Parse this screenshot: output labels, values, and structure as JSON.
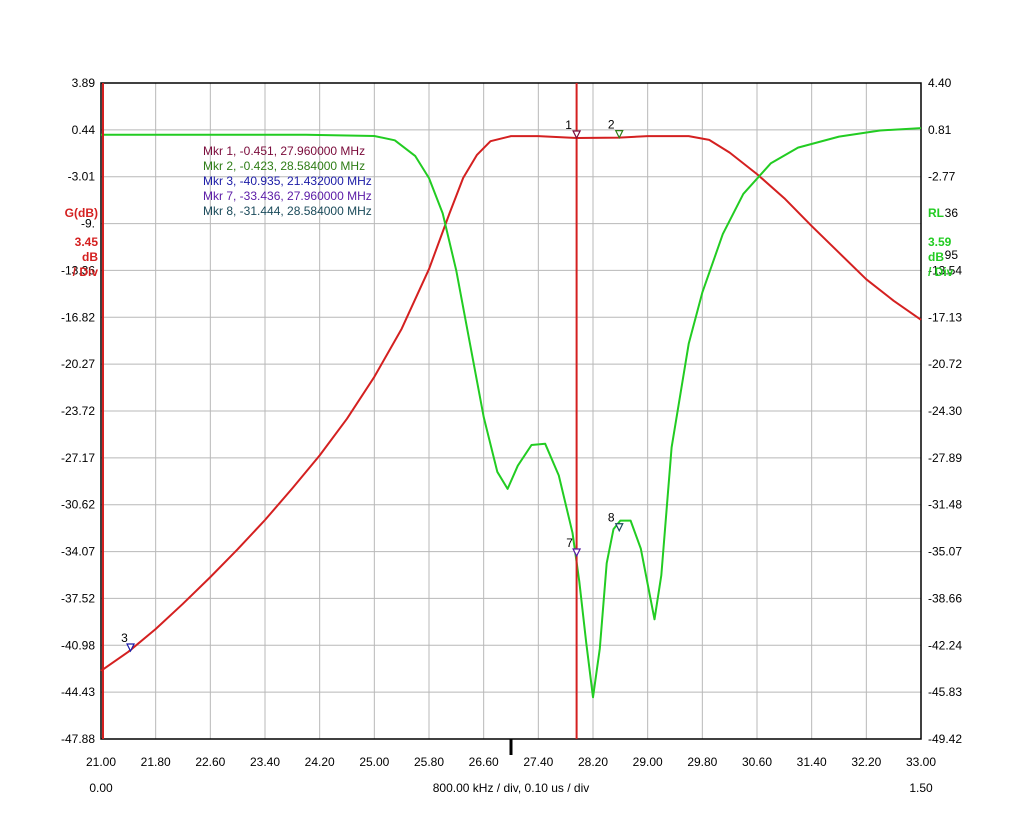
{
  "chart_data": {
    "type": "line",
    "x_ticks": [
      "21.00",
      "21.80",
      "22.60",
      "23.40",
      "24.20",
      "25.00",
      "25.80",
      "26.60",
      "27.40",
      "28.20",
      "29.00",
      "29.80",
      "30.60",
      "31.40",
      "32.20",
      "33.00"
    ],
    "x_range_mhz": [
      21.0,
      33.0
    ],
    "left_axis": {
      "label": "G(dB)",
      "scale_value": "3.45",
      "scale_unit": "dB",
      "scale_per": "/ Div",
      "color": "#d42020",
      "ticks": [
        "3.89",
        "0.44",
        "-3.01",
        "-9.",
        "-13.36",
        "-16.82",
        "-20.27",
        "-23.72",
        "-27.17",
        "-30.62",
        "-34.07",
        "-37.52",
        "-40.98",
        "-44.43",
        "-47.88"
      ],
      "range": [
        -47.88,
        3.89
      ]
    },
    "right_axis": {
      "label": "RL",
      "label_suffix": "36",
      "scale_value": "3.59",
      "scale_unit": "dB",
      "scale_suffix": "95",
      "scale_per": "/ Div",
      "color": "#22cc22",
      "ticks": [
        "4.40",
        "0.81",
        "-2.77",
        "",
        "-13.54",
        "-17.13",
        "-20.72",
        "-24.30",
        "-27.89",
        "-31.48",
        "-35.07",
        "-38.66",
        "-42.24",
        "-45.83",
        "-49.42"
      ],
      "range": [
        -49.42,
        4.4
      ]
    },
    "bottom_left": "0.00",
    "bottom_center": "800.00 kHz / div, 0.10 us / div",
    "bottom_right": "1.50",
    "marker_table": [
      {
        "text": "Mkr 1, -0.451, 27.960000 MHz",
        "color": "#7a0a3a"
      },
      {
        "text": "Mkr 2, -0.423, 28.584000 MHz",
        "color": "#2e7d16"
      },
      {
        "text": "Mkr 3, -40.935, 21.432000 MHz",
        "color": "#1a1aa6"
      },
      {
        "text": "Mkr 7, -33.436, 27.960000 MHz",
        "color": "#5a1aa6"
      },
      {
        "text": "Mkr 8, -31.444, 28.584000 MHz",
        "color": "#1a4a5a"
      }
    ],
    "series": [
      {
        "name": "G",
        "color": "#d42020",
        "axis": "left",
        "points": [
          [
            21.0,
            -42.5
          ],
          [
            21.4,
            -41.0
          ],
          [
            21.8,
            -39.2
          ],
          [
            22.2,
            -37.2
          ],
          [
            22.6,
            -35.1
          ],
          [
            23.0,
            -32.9
          ],
          [
            23.4,
            -30.6
          ],
          [
            23.8,
            -28.1
          ],
          [
            24.2,
            -25.5
          ],
          [
            24.6,
            -22.6
          ],
          [
            25.0,
            -19.3
          ],
          [
            25.4,
            -15.5
          ],
          [
            25.8,
            -10.8
          ],
          [
            26.1,
            -6.4
          ],
          [
            26.3,
            -3.6
          ],
          [
            26.5,
            -1.8
          ],
          [
            26.7,
            -0.7
          ],
          [
            27.0,
            -0.3
          ],
          [
            27.4,
            -0.3
          ],
          [
            27.96,
            -0.45
          ],
          [
            28.584,
            -0.42
          ],
          [
            29.0,
            -0.3
          ],
          [
            29.6,
            -0.3
          ],
          [
            29.9,
            -0.6
          ],
          [
            30.2,
            -1.6
          ],
          [
            30.6,
            -3.3
          ],
          [
            31.0,
            -5.2
          ],
          [
            31.4,
            -7.4
          ],
          [
            31.8,
            -9.5
          ],
          [
            32.2,
            -11.6
          ],
          [
            32.6,
            -13.3
          ],
          [
            33.0,
            -14.8
          ]
        ]
      },
      {
        "name": "RL",
        "color": "#22cc22",
        "axis": "right",
        "points": [
          [
            21.0,
            0.15
          ],
          [
            23.0,
            0.15
          ],
          [
            24.0,
            0.15
          ],
          [
            25.0,
            0.05
          ],
          [
            25.3,
            -0.3
          ],
          [
            25.6,
            -1.6
          ],
          [
            25.8,
            -3.4
          ],
          [
            26.0,
            -6.3
          ],
          [
            26.2,
            -11.0
          ],
          [
            26.4,
            -17.0
          ],
          [
            26.6,
            -23.0
          ],
          [
            26.8,
            -27.5
          ],
          [
            26.95,
            -28.9
          ],
          [
            27.1,
            -27.0
          ],
          [
            27.3,
            -25.3
          ],
          [
            27.5,
            -25.2
          ],
          [
            27.7,
            -27.8
          ],
          [
            27.9,
            -32.5
          ],
          [
            28.0,
            -36.5
          ],
          [
            28.1,
            -41.5
          ],
          [
            28.2,
            -46.0
          ],
          [
            28.3,
            -42.0
          ],
          [
            28.4,
            -35.0
          ],
          [
            28.5,
            -32.2
          ],
          [
            28.6,
            -31.5
          ],
          [
            28.75,
            -31.5
          ],
          [
            28.9,
            -33.8
          ],
          [
            29.1,
            -39.6
          ],
          [
            29.2,
            -36.0
          ],
          [
            29.35,
            -25.5
          ],
          [
            29.6,
            -17.0
          ],
          [
            29.8,
            -12.8
          ],
          [
            30.1,
            -8.0
          ],
          [
            30.4,
            -4.7
          ],
          [
            30.8,
            -2.2
          ],
          [
            31.2,
            -0.9
          ],
          [
            31.8,
            0.0
          ],
          [
            32.4,
            0.5
          ],
          [
            33.0,
            0.7
          ]
        ]
      }
    ],
    "plot_markers": [
      {
        "label": "1",
        "x": 27.96,
        "axis": "left",
        "y": -0.451,
        "color": "#7a0a3a"
      },
      {
        "label": "2",
        "x": 28.584,
        "axis": "left",
        "y": -0.423,
        "color": "#2e7d16"
      },
      {
        "label": "3",
        "x": 21.432,
        "axis": "left",
        "y": -40.935,
        "color": "#1a1aa6"
      },
      {
        "label": "7",
        "x": 27.96,
        "axis": "left",
        "y": -33.436,
        "color": "#5a1aa6"
      },
      {
        "label": "8",
        "x": 28.584,
        "axis": "left",
        "y": -31.444,
        "color": "#1a4a5a"
      }
    ],
    "cursor_x": 27.96,
    "center_x": 27.0,
    "grid": true
  }
}
